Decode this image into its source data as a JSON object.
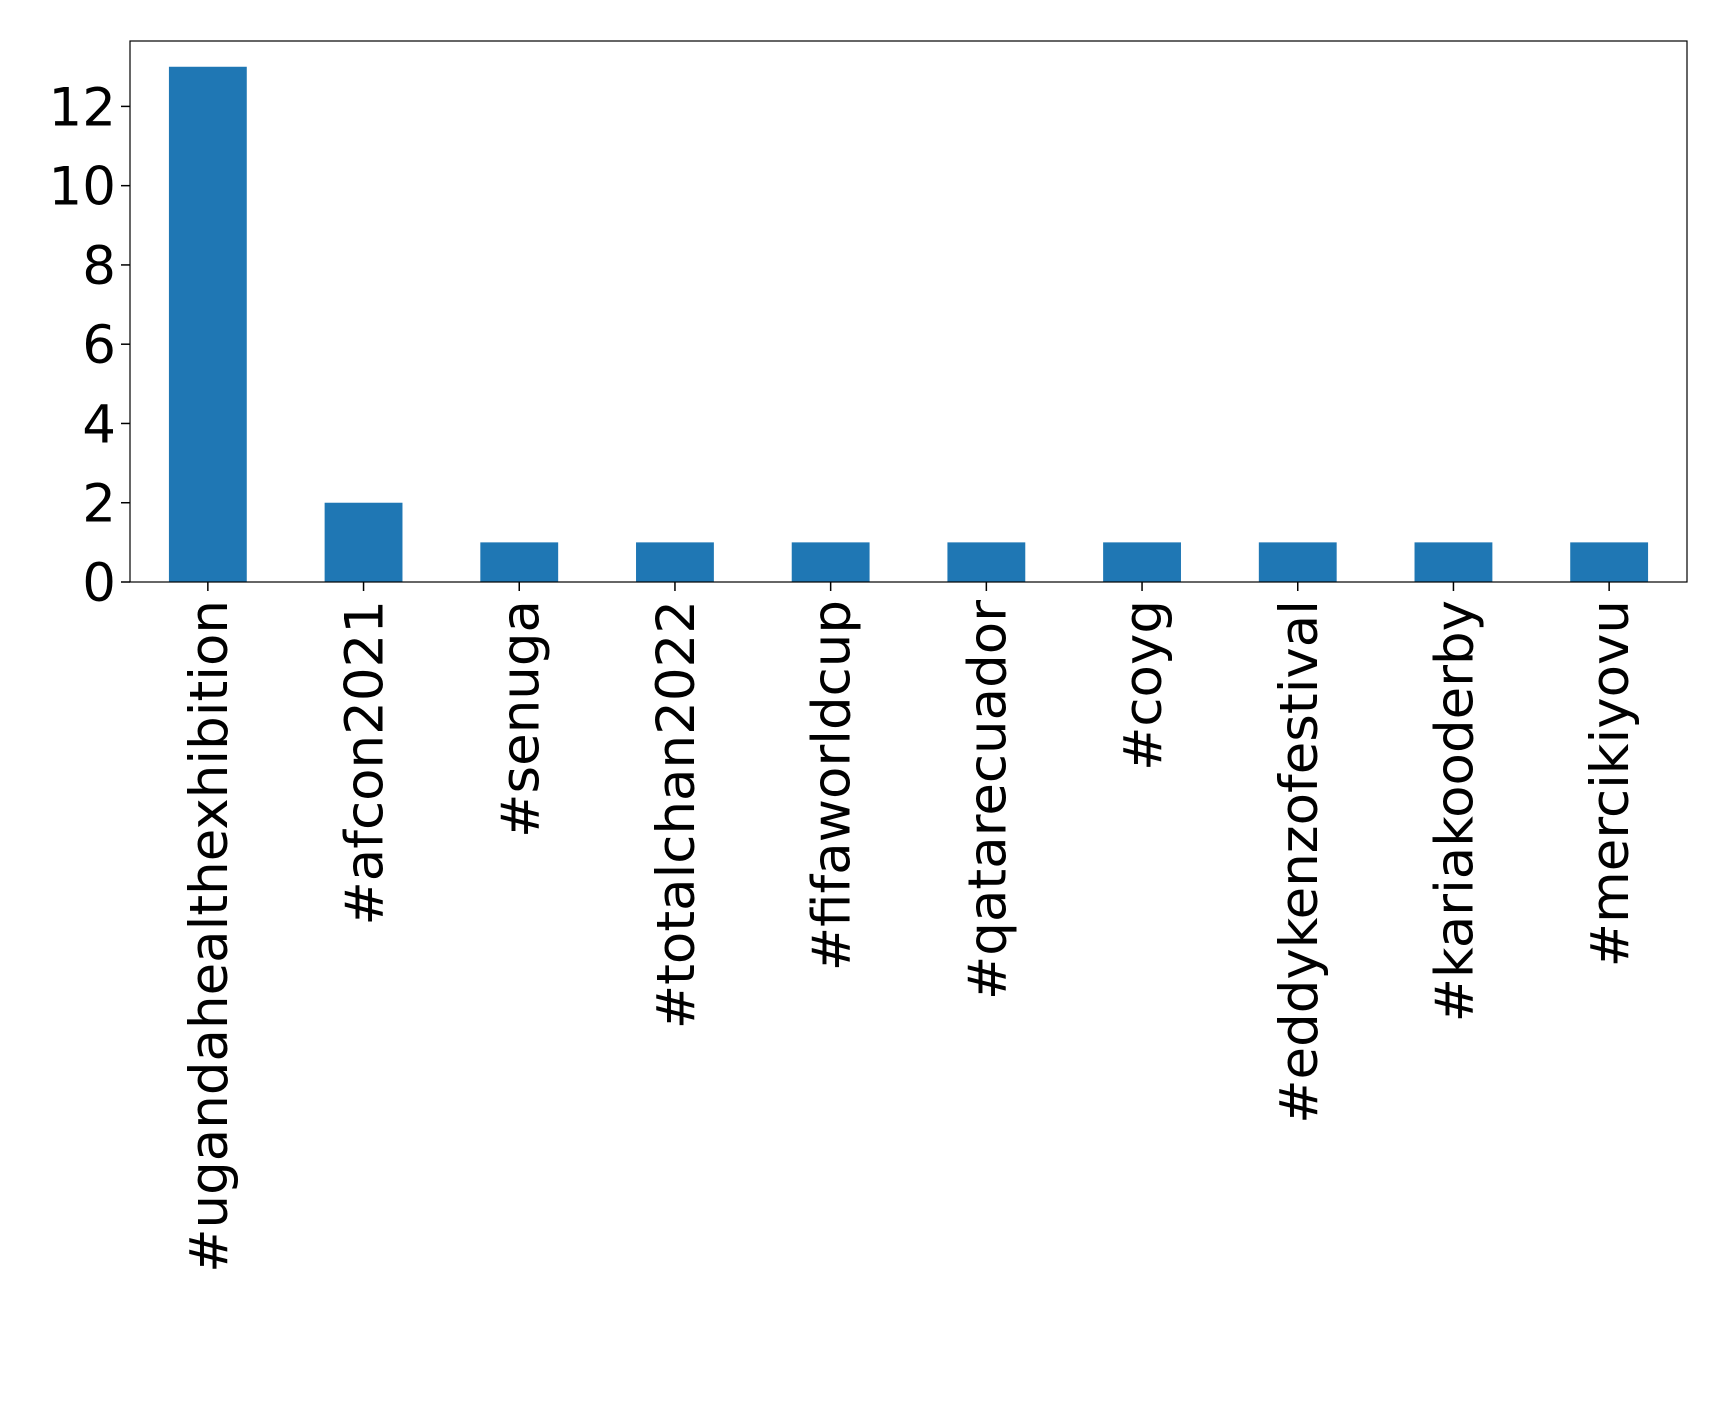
{
  "chart_data": {
    "type": "bar",
    "categories": [
      "#ugandahealthexhibition",
      "#afcon2021",
      "#senuga",
      "#totalchan2022",
      "#fifaworldcup",
      "#qatarecuador",
      "#coyg",
      "#eddykenzofestival",
      "#kariakooderby",
      "#mercikiyovu"
    ],
    "values": [
      13,
      2,
      1,
      1,
      1,
      1,
      1,
      1,
      1,
      1
    ],
    "color": "#1f77b4",
    "ylim": [
      0,
      13.65
    ],
    "yticks": [
      0,
      2,
      4,
      6,
      8,
      10,
      12
    ],
    "grid": false
  }
}
